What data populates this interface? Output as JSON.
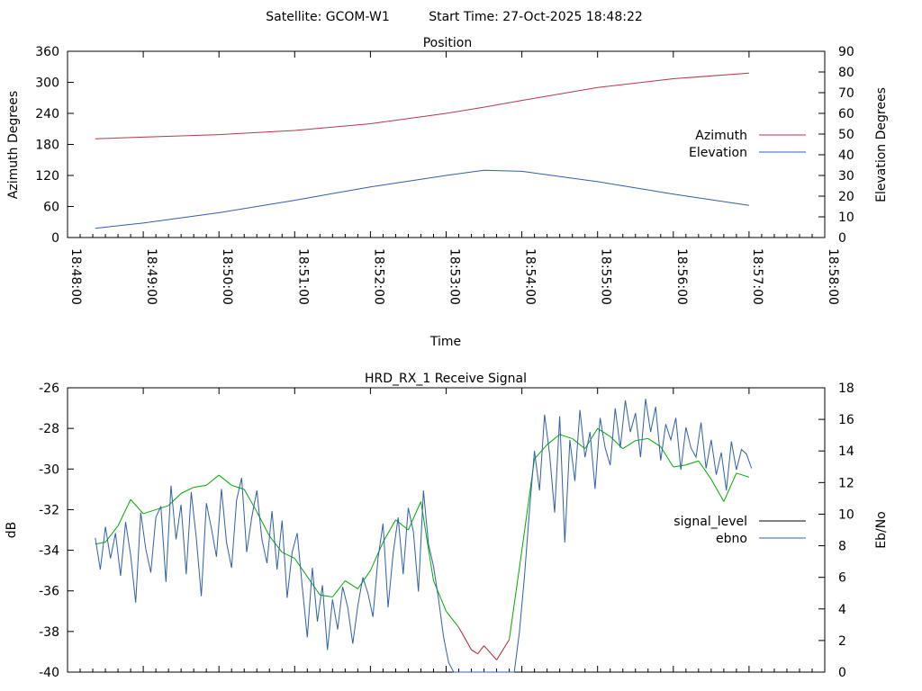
{
  "header": {
    "satellite_label": "Satellite: GCOM-W1",
    "start_time_label": "Start Time: 27-Oct-2025 18:48:22"
  },
  "chart_data": [
    {
      "id": "position",
      "type": "line",
      "title": "Position",
      "xlabel": "Time",
      "ylabel": "Azimuth Degrees",
      "y2label": "Elevation Degrees",
      "xlim_seconds": [
        0,
        600
      ],
      "ylim": [
        0,
        360
      ],
      "y2lim": [
        0,
        90
      ],
      "x_tick_labels": [
        "18:48:00",
        "18:49:00",
        "18:50:00",
        "18:51:00",
        "18:52:00",
        "18:53:00",
        "18:54:00",
        "18:55:00",
        "18:56:00",
        "18:57:00",
        "18:58:00"
      ],
      "x_tick_seconds": [
        0,
        60,
        120,
        180,
        240,
        300,
        360,
        420,
        480,
        540,
        600
      ],
      "y_ticks": [
        0,
        60,
        120,
        180,
        240,
        300,
        360
      ],
      "y2_ticks": [
        0,
        10,
        20,
        30,
        40,
        50,
        60,
        70,
        80,
        90
      ],
      "legend_position": "right",
      "series": [
        {
          "name": "Azimuth",
          "axis": "y",
          "color": "#b03a48",
          "x": [
            22,
            60,
            120,
            180,
            240,
            300,
            330,
            360,
            420,
            480,
            540
          ],
          "values": [
            191,
            194,
            199,
            207,
            220,
            240,
            252,
            265,
            290,
            307,
            318
          ]
        },
        {
          "name": "Elevation",
          "axis": "y2",
          "color": "#3060a8",
          "x": [
            22,
            60,
            120,
            180,
            240,
            300,
            330,
            360,
            420,
            480,
            540
          ],
          "values": [
            4.5,
            7,
            12,
            18,
            24.5,
            30,
            32.5,
            32,
            27,
            21,
            15.5
          ]
        }
      ]
    },
    {
      "id": "receive-signal",
      "type": "line",
      "title": "HRD_RX_1 Receive Signal",
      "xlabel": "",
      "ylabel": "dB",
      "y2label": "Eb/No",
      "xlim_seconds": [
        0,
        600
      ],
      "ylim": [
        -40,
        -26
      ],
      "y2lim": [
        0,
        18
      ],
      "y_ticks": [
        -40,
        -38,
        -36,
        -34,
        -32,
        -30,
        -28,
        -26
      ],
      "y2_ticks": [
        0,
        2,
        4,
        6,
        8,
        10,
        12,
        14,
        16,
        18
      ],
      "legend_position": "right",
      "series": [
        {
          "name": "signal_level",
          "axis": "y",
          "color": "#000000",
          "segment_colors": {
            "high": "#00aa00",
            "low": "#b22222",
            "threshold": -37
          },
          "x": [
            22,
            30,
            40,
            50,
            60,
            70,
            80,
            90,
            100,
            110,
            120,
            130,
            140,
            150,
            160,
            170,
            180,
            190,
            200,
            210,
            220,
            230,
            240,
            250,
            260,
            270,
            280,
            290,
            300,
            310,
            320,
            325,
            330,
            340,
            350,
            360,
            370,
            380,
            390,
            400,
            410,
            420,
            430,
            440,
            450,
            460,
            470,
            480,
            490,
            500,
            510,
            520,
            530,
            540
          ],
          "values": [
            -33.7,
            -33.6,
            -32.8,
            -31.5,
            -32.2,
            -32.0,
            -31.8,
            -31.2,
            -30.9,
            -30.8,
            -30.3,
            -30.8,
            -31.0,
            -32.1,
            -33.3,
            -34.1,
            -34.4,
            -35.3,
            -36.2,
            -36.3,
            -35.5,
            -35.9,
            -35.0,
            -33.6,
            -32.5,
            -33.0,
            -31.6,
            -35.5,
            -37.0,
            -37.8,
            -38.9,
            -39.1,
            -38.7,
            -39.4,
            -38.4,
            -34.0,
            -29.5,
            -28.8,
            -28.3,
            -28.5,
            -29.0,
            -28.0,
            -28.4,
            -29.0,
            -28.6,
            -28.5,
            -28.9,
            -29.9,
            -29.8,
            -29.6,
            -30.5,
            -31.6,
            -30.2,
            -30.4
          ]
        },
        {
          "name": "ebno",
          "axis": "y2",
          "color": "#3060a8",
          "x": [
            22,
            26,
            30,
            34,
            38,
            42,
            46,
            50,
            54,
            58,
            62,
            66,
            70,
            74,
            78,
            82,
            86,
            90,
            94,
            98,
            102,
            106,
            110,
            114,
            118,
            122,
            126,
            130,
            134,
            138,
            142,
            146,
            150,
            154,
            158,
            162,
            166,
            170,
            174,
            178,
            182,
            186,
            190,
            194,
            198,
            202,
            206,
            210,
            214,
            218,
            222,
            226,
            230,
            234,
            238,
            242,
            246,
            250,
            254,
            258,
            262,
            266,
            270,
            274,
            278,
            282,
            286,
            290,
            294,
            298,
            302,
            306,
            310,
            314,
            318,
            322,
            326,
            330,
            334,
            338,
            342,
            346,
            350,
            354,
            358,
            362,
            366,
            370,
            374,
            378,
            382,
            386,
            390,
            394,
            398,
            402,
            406,
            410,
            414,
            418,
            422,
            426,
            430,
            434,
            438,
            442,
            446,
            450,
            454,
            458,
            462,
            466,
            470,
            474,
            478,
            482,
            486,
            490,
            494,
            498,
            502,
            506,
            510,
            514,
            518,
            522,
            526,
            530,
            534,
            538,
            542
          ],
          "values": [
            8.5,
            6.5,
            9.2,
            7.2,
            8.8,
            6.1,
            9.5,
            7.4,
            4.4,
            10.1,
            7.8,
            6.3,
            9.8,
            10.5,
            5.7,
            11.8,
            8.4,
            10.6,
            6.2,
            11.4,
            8.5,
            4.8,
            10.7,
            9.1,
            7.3,
            11.6,
            8.2,
            6.6,
            10.9,
            12.3,
            7.6,
            9.8,
            11.5,
            8.4,
            6.9,
            10.2,
            6.5,
            9.6,
            4.7,
            7.6,
            8.8,
            5.4,
            2.2,
            6.6,
            3.2,
            5.5,
            1.4,
            4.6,
            2.7,
            5.4,
            4.1,
            1.8,
            4.2,
            6.0,
            5.0,
            3.5,
            7.2,
            9.4,
            4.1,
            7.5,
            9.8,
            6.2,
            10.4,
            8.9,
            5.1,
            11.5,
            8.1,
            6.7,
            4.6,
            2.2,
            0.6,
            0.0,
            0.0,
            0.0,
            0.0,
            0.0,
            0.0,
            0.0,
            0.0,
            0.0,
            0.0,
            0.0,
            0.0,
            0.0,
            2.5,
            6.0,
            10.2,
            14.0,
            11.5,
            16.3,
            13.8,
            10.1,
            16.2,
            8.2,
            14.7,
            12.1,
            16.6,
            13.6,
            15.2,
            11.6,
            16.1,
            14.2,
            13.1,
            16.7,
            14.2,
            17.2,
            15.2,
            16.4,
            13.6,
            17.3,
            15.2,
            16.8,
            13.4,
            15.7,
            14.7,
            16.1,
            12.8,
            15.5,
            14.2,
            13.6,
            15.8,
            12.9,
            14.7,
            12.5,
            13.9,
            11.5,
            14.6,
            12.8,
            14.1,
            13.8,
            12.9
          ]
        }
      ]
    }
  ]
}
